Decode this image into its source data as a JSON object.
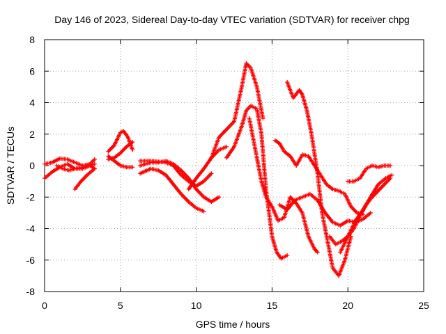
{
  "chart_data": {
    "type": "scatter",
    "title": "Day 146 of 2023, Sidereal Day-to-day VTEC variation (SDTVAR) for receiver chpg",
    "xlabel": "GPS time / hours",
    "ylabel": "SDTVAR / TECUs",
    "xlim": [
      0,
      25
    ],
    "ylim": [
      -8,
      8
    ],
    "xticks": [
      0,
      5,
      10,
      15,
      20,
      25
    ],
    "yticks": [
      -8,
      -6,
      -4,
      -2,
      0,
      2,
      4,
      6,
      8
    ],
    "xtick_labels": [
      "0",
      "5",
      "10",
      "15",
      "20",
      "25"
    ],
    "ytick_labels": [
      "-8",
      "-6",
      "-4",
      "-2",
      "0",
      "2",
      "4",
      "6",
      "8"
    ],
    "grid": true,
    "marker": "plus",
    "color": "#ff0000",
    "series": [
      {
        "x": [
          0.0,
          0.5,
          1.0,
          1.5,
          2.0,
          2.5,
          3.0,
          3.3
        ],
        "y": [
          0.1,
          0.2,
          0.45,
          0.4,
          0.2,
          0.0,
          0.1,
          0.4
        ]
      },
      {
        "x": [
          0.0,
          0.5,
          1.0,
          1.5,
          2.0,
          2.5,
          3.0,
          3.3
        ],
        "y": [
          -0.8,
          -0.4,
          -0.1,
          0.1,
          -0.2,
          -0.2,
          0.0,
          -0.2
        ]
      },
      {
        "x": [
          0.8,
          1.2,
          1.6,
          2.0,
          2.5,
          3.0,
          3.3
        ],
        "y": [
          0.0,
          -0.2,
          -0.3,
          -0.2,
          -0.1,
          0.0,
          0.1
        ]
      },
      {
        "x": [
          2.0,
          2.4,
          2.8,
          3.3
        ],
        "y": [
          -1.5,
          -1.0,
          -0.6,
          -0.2
        ]
      },
      {
        "x": [
          4.2,
          4.6,
          5.0,
          5.2,
          5.5,
          5.8
        ],
        "y": [
          0.9,
          1.3,
          2.1,
          2.2,
          1.8,
          1.0
        ]
      },
      {
        "x": [
          4.2,
          4.6,
          5.0,
          5.4,
          5.8
        ],
        "y": [
          0.4,
          0.5,
          0.8,
          1.2,
          1.5
        ]
      },
      {
        "x": [
          4.2,
          4.6,
          5.0,
          5.4,
          5.8
        ],
        "y": [
          0.6,
          0.3,
          0.0,
          -0.1,
          -0.1
        ]
      },
      {
        "x": [
          6.3,
          7.0,
          7.5,
          8.0,
          8.5,
          9.0,
          9.5,
          10.0,
          10.5,
          11.0,
          11.5
        ],
        "y": [
          0.0,
          0.2,
          0.2,
          0.3,
          0.1,
          -0.3,
          -0.8,
          -1.5,
          -2.0,
          -2.3,
          -2.0
        ]
      },
      {
        "x": [
          6.3,
          7.0,
          7.5,
          8.0,
          8.5,
          9.0,
          9.5,
          10.0,
          10.5
        ],
        "y": [
          -0.5,
          -0.2,
          -0.3,
          -0.6,
          -1.2,
          -1.8,
          -2.3,
          -2.7,
          -2.9
        ]
      },
      {
        "x": [
          6.3,
          7.0,
          8.0,
          8.5,
          9.0,
          9.5,
          10.0,
          10.5,
          11.0
        ],
        "y": [
          0.3,
          0.3,
          0.2,
          0.0,
          -0.6,
          -1.0,
          -1.3,
          -1.0,
          -0.5
        ]
      },
      {
        "x": [
          9.5,
          10.0,
          10.5,
          11.0,
          11.5,
          12.0
        ],
        "y": [
          -1.5,
          -0.8,
          -0.2,
          0.5,
          1.0,
          1.2
        ]
      },
      {
        "x": [
          11.0,
          11.5,
          12.0,
          12.5,
          13.0,
          13.3,
          13.6,
          14.0,
          14.4
        ],
        "y": [
          0.5,
          1.8,
          2.3,
          2.8,
          5.0,
          6.5,
          6.2,
          5.0,
          3.0
        ]
      },
      {
        "x": [
          12.0,
          12.5,
          13.0,
          13.3,
          13.6,
          14.0,
          14.3,
          14.6,
          15.0,
          15.3,
          15.6,
          16.0
        ],
        "y": [
          0.5,
          1.2,
          2.5,
          3.5,
          3.8,
          3.6,
          2.0,
          -1.5,
          -4.5,
          -5.5,
          -5.9,
          -5.7
        ]
      },
      {
        "x": [
          13.5,
          14.0,
          14.3,
          14.6,
          15.0,
          15.4,
          15.8,
          16.2,
          16.6,
          17.0,
          17.4,
          17.8,
          18.0
        ],
        "y": [
          3.0,
          0.5,
          -1.0,
          -2.0,
          -2.6,
          -3.5,
          -3.3,
          -2.0,
          -2.4,
          -3.0,
          -4.5,
          -5.3,
          -5.5
        ]
      },
      {
        "x": [
          15.2,
          15.5,
          15.8,
          16.2,
          16.6,
          17.0,
          17.4,
          17.8,
          18.2,
          18.6,
          19.0,
          19.4,
          19.8,
          20.2,
          20.6,
          21.0
        ],
        "y": [
          1.6,
          1.4,
          0.9,
          0.6,
          0.0,
          0.7,
          0.6,
          0.0,
          -0.6,
          -1.2,
          -1.5,
          -1.6,
          -1.8,
          -2.6,
          -3.0,
          -3.1
        ]
      },
      {
        "x": [
          16.0,
          16.4,
          16.8,
          17.0,
          17.3,
          17.6,
          18.0,
          18.3,
          18.6,
          19.0,
          19.4,
          19.8,
          20.2
        ],
        "y": [
          5.3,
          4.3,
          4.8,
          4.5,
          3.5,
          2.0,
          -0.5,
          -3.0,
          -4.5,
          -6.5,
          -7.0,
          -6.0,
          -4.5
        ]
      },
      {
        "x": [
          15.5,
          16.0,
          16.5,
          17.0,
          17.5,
          18.0,
          18.5,
          19.0,
          19.5,
          20.0,
          20.5,
          21.0,
          21.5
        ],
        "y": [
          -2.5,
          -2.8,
          -2.2,
          -2.0,
          -1.8,
          -2.2,
          -3.0,
          -3.6,
          -3.8,
          -3.5,
          -3.6,
          -3.4,
          -3.0
        ]
      },
      {
        "x": [
          18.8,
          19.2,
          19.6,
          20.0,
          20.4,
          20.8,
          21.2,
          21.6,
          22.0,
          22.4,
          22.8
        ],
        "y": [
          -4.5,
          -5.0,
          -4.8,
          -4.5,
          -4.0,
          -3.2,
          -2.5,
          -2.0,
          -1.6,
          -1.2,
          -0.8
        ]
      },
      {
        "x": [
          19.5,
          20.0,
          20.5,
          21.0,
          21.5,
          22.0,
          22.5,
          22.9
        ],
        "y": [
          -5.5,
          -4.5,
          -3.5,
          -2.8,
          -2.0,
          -1.2,
          -0.8,
          -0.6
        ]
      },
      {
        "x": [
          20.0,
          20.4,
          20.8,
          21.2,
          21.6,
          22.0,
          22.4,
          22.8
        ],
        "y": [
          -1.0,
          -1.0,
          -0.8,
          -0.2,
          0.0,
          -0.1,
          0.0,
          0.0
        ]
      }
    ]
  }
}
